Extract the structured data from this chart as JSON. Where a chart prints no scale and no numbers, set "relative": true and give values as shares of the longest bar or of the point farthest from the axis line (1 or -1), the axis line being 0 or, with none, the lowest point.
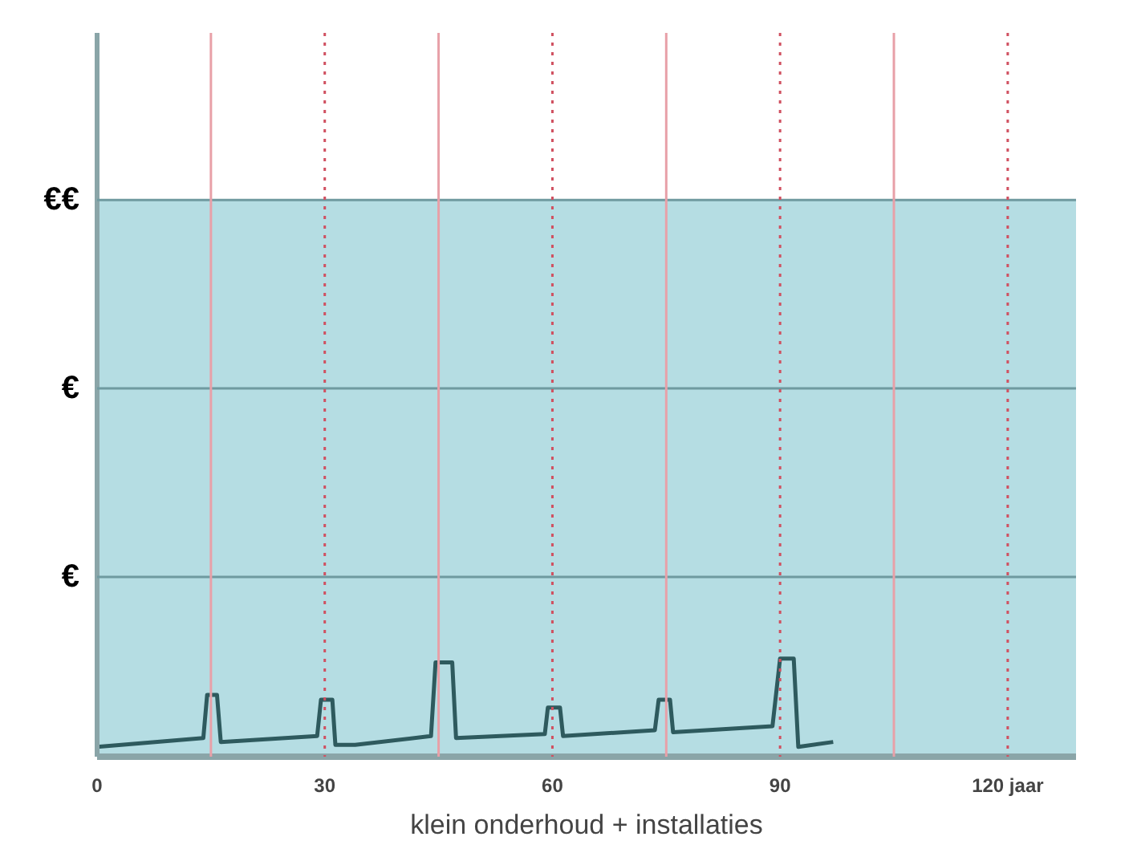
{
  "chart_data": {
    "type": "line",
    "relative": true,
    "xlabel": "klein onderhoud + installaties",
    "xlim": [
      0,
      129
    ],
    "xticks": [
      0,
      30,
      60,
      90,
      {
        "value": 120,
        "label": "120 jaar"
      }
    ],
    "x": [
      0,
      14.0,
      14.5,
      15.8,
      16.3,
      29.0,
      29.5,
      31.0,
      31.4,
      34.0,
      44.0,
      44.6,
      46.8,
      47.3,
      59.0,
      59.4,
      61.0,
      61.4,
      73.5,
      74.0,
      75.5,
      75.9,
      89.0,
      90.0,
      91.8,
      92.4,
      97.0
    ],
    "series": [
      {
        "color": "#2e5a5e",
        "values": [
          0.1,
          0.19,
          0.63,
          0.63,
          0.15,
          0.21,
          0.58,
          0.58,
          0.12,
          0.12,
          0.21,
          0.96,
          0.96,
          0.19,
          0.23,
          0.5,
          0.5,
          0.21,
          0.27,
          0.58,
          0.58,
          0.25,
          0.31,
          1.0,
          1.0,
          0.1,
          0.15
        ]
      }
    ],
    "bands": [
      {
        "axis": "y",
        "from": 0,
        "to": 5.67,
        "color": "#b5dde3"
      }
    ],
    "ref_lines": [
      {
        "axis": "y",
        "value": 1.83,
        "label": "€",
        "color": "#6f9aa0"
      },
      {
        "axis": "y",
        "value": 3.75,
        "label": "€",
        "color": "#6f9aa0"
      },
      {
        "axis": "y",
        "value": 5.67,
        "label": "€€",
        "color": "#6f9aa0"
      },
      {
        "axis": "x",
        "value": 15,
        "color": "#e8a0a8",
        "line_style": "solid"
      },
      {
        "axis": "x",
        "value": 30,
        "color": "#d05060",
        "line_style": "dotted"
      },
      {
        "axis": "x",
        "value": 45,
        "color": "#e8a0a8",
        "line_style": "solid"
      },
      {
        "axis": "x",
        "value": 60,
        "color": "#d05060",
        "line_style": "dotted"
      },
      {
        "axis": "x",
        "value": 75,
        "color": "#e8a0a8",
        "line_style": "solid"
      },
      {
        "axis": "x",
        "value": 90,
        "color": "#d05060",
        "line_style": "dotted"
      },
      {
        "axis": "x",
        "value": 105,
        "color": "#e8a0a8",
        "line_style": "solid"
      },
      {
        "axis": "x",
        "value": 120,
        "color": "#d05060",
        "line_style": "dotted"
      }
    ],
    "grid": false
  }
}
